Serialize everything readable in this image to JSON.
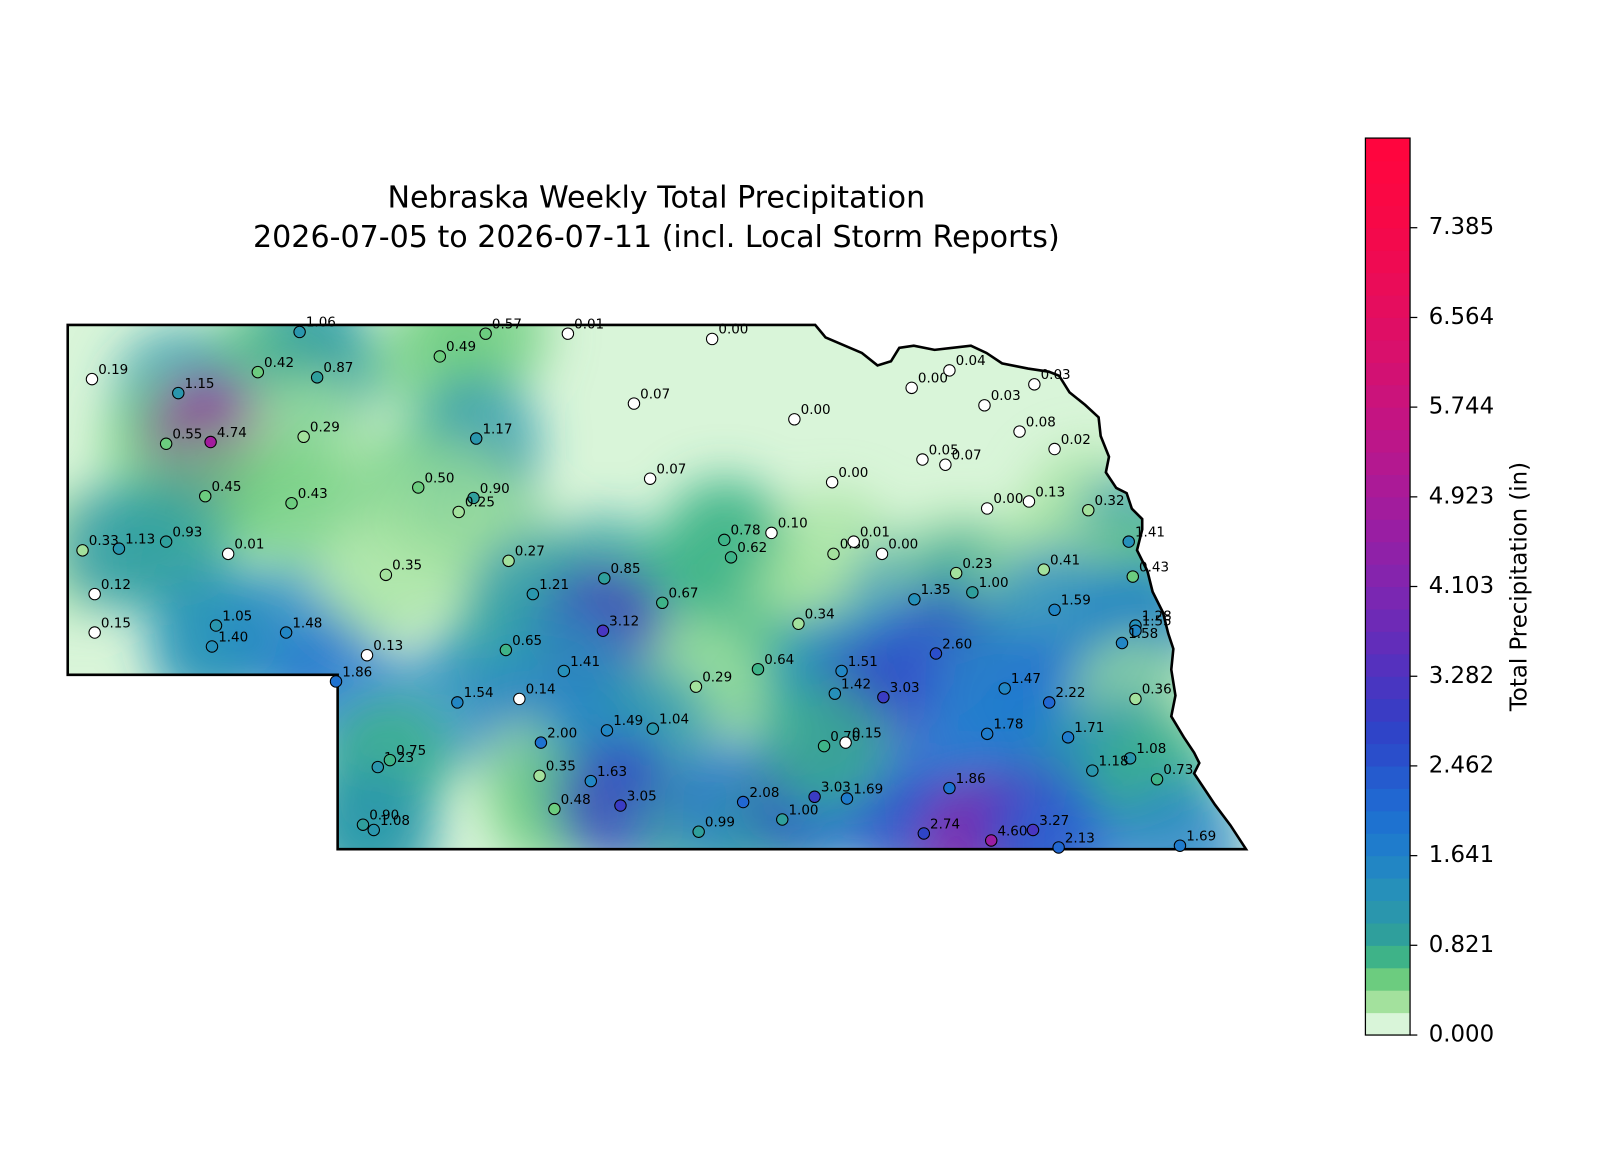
{
  "chart_data": {
    "type": "map",
    "title": "Nebraska Weekly Total Precipitation",
    "subtitle": "2026-07-05 to 2026-07-11 (incl. Local Storm Reports)",
    "xlim": [
      -104.05,
      -95.31
    ],
    "ylim": [
      40,
      43
    ],
    "series": [
      {
        "x": [
          -103.87,
          -102.33,
          -102.64,
          -102.2,
          -103.23,
          -103.32,
          -102.99,
          -102.3,
          -103.03,
          -102.39,
          -103.94,
          -103.67,
          -103.32,
          -102.86,
          -103.85,
          -103.85,
          -102.95,
          -102.98,
          -102.43,
          -102.06,
          -101.29,
          -100.95,
          -100.34,
          -99.27,
          -101.02,
          -101.45,
          -101.04,
          -101.15,
          -99.85,
          -99.73,
          -98.66,
          -98.38,
          -97.79,
          -97.51,
          -97.25,
          -96.88,
          -96.99,
          -96.73,
          -97.71,
          -97.54,
          -97.23,
          -96.92,
          -96.48,
          -96.18,
          -96.15,
          -101.69,
          -100.78,
          -101.83,
          -100.8,
          -100.6,
          -100.07,
          -99.64,
          -100.08,
          -100.37,
          -101.16,
          -100.7,
          -99.18,
          -99.13,
          -98.83,
          -98.37,
          -98.22,
          -98.01,
          -98.63,
          -98.93,
          -99.39,
          -98.31,
          -98.36,
          -98.0,
          -97.77,
          -97.46,
          -97.34,
          -96.81,
          -96.73,
          -97.61,
          -97.1,
          -96.77,
          -97.23,
          -96.63,
          -96.13,
          -96.13,
          -96.23,
          -96.13,
          -96.17,
          -96.45,
          -95.97,
          -101.75,
          -101.66,
          -100.54,
          -100.55,
          -100.05,
          -99.71,
          -100.17,
          -100.44,
          -99.95,
          -101.86,
          -101.78,
          -99.37,
          -99.04,
          -98.75,
          -98.51,
          -98.27,
          -98.44,
          -98.28,
          -97.51,
          -97.7,
          -97.2,
          -96.89,
          -96.7,
          -95.8
        ],
        "y": [
          42.69,
          42.96,
          42.73,
          42.7,
          42.61,
          42.32,
          42.33,
          42.36,
          42.02,
          41.98,
          41.71,
          41.72,
          41.76,
          41.69,
          41.46,
          41.24,
          41.28,
          41.16,
          41.24,
          40.96,
          42.82,
          42.95,
          42.95,
          42.92,
          42.35,
          42.07,
          42.01,
          41.93,
          42.55,
          42.12,
          42.46,
          42.1,
          42.64,
          42.74,
          42.54,
          42.66,
          42.39,
          42.29,
          42.23,
          42.2,
          41.95,
          41.99,
          41.94,
          41.76,
          41.56,
          41.57,
          41.65,
          41.11,
          41.14,
          41.46,
          41.55,
          41.41,
          41.25,
          41.02,
          40.84,
          40.86,
          41.77,
          41.67,
          41.81,
          41.69,
          41.76,
          41.69,
          41.29,
          41.03,
          40.93,
          41.02,
          40.89,
          40.87,
          41.43,
          41.58,
          41.47,
          41.6,
          41.37,
          41.12,
          40.92,
          40.84,
          40.66,
          40.64,
          41.28,
          41.25,
          41.18,
          40.86,
          40.52,
          40.45,
          40.4,
          40.47,
          40.51,
          40.61,
          40.42,
          40.68,
          40.69,
          40.39,
          40.23,
          40.25,
          40.14,
          40.11,
          40.1,
          40.27,
          40.17,
          40.3,
          40.29,
          40.59,
          40.61,
          40.35,
          40.09,
          40.05,
          40.11,
          40.01,
          40.02
        ],
        "values": [
          0.19,
          1.06,
          0.42,
          0.87,
          1.15,
          0.55,
          4.74,
          0.29,
          0.45,
          0.43,
          0.33,
          1.13,
          0.93,
          0.01,
          0.12,
          0.15,
          1.05,
          1.4,
          1.48,
          1.86,
          0.49,
          0.57,
          0.01,
          0.0,
          1.17,
          0.5,
          0.9,
          0.25,
          0.07,
          0.07,
          0.0,
          0.0,
          0.0,
          0.04,
          0.03,
          0.03,
          0.08,
          0.02,
          0.05,
          0.07,
          0.0,
          0.13,
          0.32,
          1.41,
          0.43,
          0.35,
          0.27,
          0.13,
          0.65,
          1.21,
          0.85,
          0.67,
          3.12,
          1.41,
          1.54,
          0.14,
          0.78,
          0.62,
          0.1,
          0.3,
          0.01,
          0.0,
          0.34,
          0.64,
          0.29,
          1.51,
          1.42,
          3.03,
          1.35,
          0.23,
          1.0,
          0.41,
          1.59,
          2.6,
          1.47,
          2.22,
          1.78,
          1.71,
          1.28,
          1.55,
          1.58,
          0.36,
          1.08,
          1.18,
          0.73,
          1.23,
          0.75,
          2.0,
          0.35,
          1.49,
          1.04,
          1.63,
          0.48,
          3.05,
          0.9,
          1.08,
          0.99,
          2.08,
          1.0,
          3.03,
          1.69,
          0.7,
          0.15,
          1.86,
          2.74,
          4.6,
          3.27,
          2.13,
          1.69
        ],
        "value_labels": [
          "0.19",
          "1.06",
          "0.42",
          "0.87",
          "1.15",
          "0.55",
          "4.74",
          "0.29",
          "0.45",
          "0.43",
          "0.33",
          "1.13",
          "0.93",
          "0.01",
          "0.12",
          "0.15",
          "1.05",
          "1.40",
          "1.48",
          "1.86",
          "0.49",
          "0.57",
          "0.01",
          "0.00",
          "1.17",
          "0.50",
          "0.90",
          "0.25",
          "0.07",
          "0.07",
          "0.00",
          "0.00",
          "0.00",
          "0.04",
          "0.03",
          "0.03",
          "0.08",
          "0.02",
          "0.05",
          "0.07",
          "0.00",
          "0.13",
          "0.32",
          "1.41",
          "0.43",
          "0.35",
          "0.27",
          "0.13",
          "0.65",
          "1.21",
          "0.85",
          "0.67",
          "3.12",
          "1.41",
          "1.54",
          "0.14",
          "0.78",
          "0.62",
          "0.10",
          "0.30",
          "0.01",
          "0.00",
          "0.34",
          "0.64",
          "0.29",
          "1.51",
          "1.42",
          "3.03",
          "1.35",
          "0.23",
          "1.00",
          "0.41",
          "1.59",
          "2.60",
          "1.47",
          "2.22",
          "1.78",
          "1.71",
          "1.28",
          "1.55",
          "1.58",
          "0.36",
          "1.08",
          "1.18",
          "0.73",
          "1.23",
          "0.75",
          "2.00",
          "0.35",
          "1.49",
          "1.04",
          "1.63",
          "0.48",
          "3.05",
          "0.90",
          "1.08",
          "0.99",
          "2.08",
          "1.00",
          "3.03",
          "1.69",
          "0.70",
          "0.15",
          "1.86",
          "2.74",
          "4.60",
          "3.27",
          "2.13",
          "1.69"
        ]
      }
    ],
    "colorbar": {
      "label": "Total Precipitation (in)",
      "lim": [
        0,
        8.205
      ],
      "ticks": [
        {
          "value": 0,
          "label": "0.000"
        },
        0.821,
        1.641,
        2.462,
        3.282,
        4.103,
        4.923,
        5.744,
        6.564,
        7.385
      ],
      "colors": [
        "#d9f5d9",
        "#a3e19d",
        "#6ccc7f",
        "#3eb388",
        "#2f9f9c",
        "#2a96ad",
        "#2690ba",
        "#2286c4",
        "#1f7ccc",
        "#1e72d0",
        "#2167d1",
        "#255bce",
        "#2a4ecb",
        "#2f44c8",
        "#3a3cc4",
        "#4836c1",
        "#5531be",
        "#622dba",
        "#6e2ab6",
        "#7a27b2",
        "#8524ad",
        "#8f21a8",
        "#991ea3",
        "#a21c9d",
        "#ab1a97",
        "#b41890",
        "#bc1689",
        "#c41482",
        "#cb137b",
        "#d21173",
        "#d9106c",
        "#df0e65",
        "#e50d5e",
        "#ea0c58",
        "#ef0a52",
        "#f3094c",
        "#f70847",
        "#fa0744",
        "#fd0641",
        "#ff053e"
      ]
    }
  }
}
